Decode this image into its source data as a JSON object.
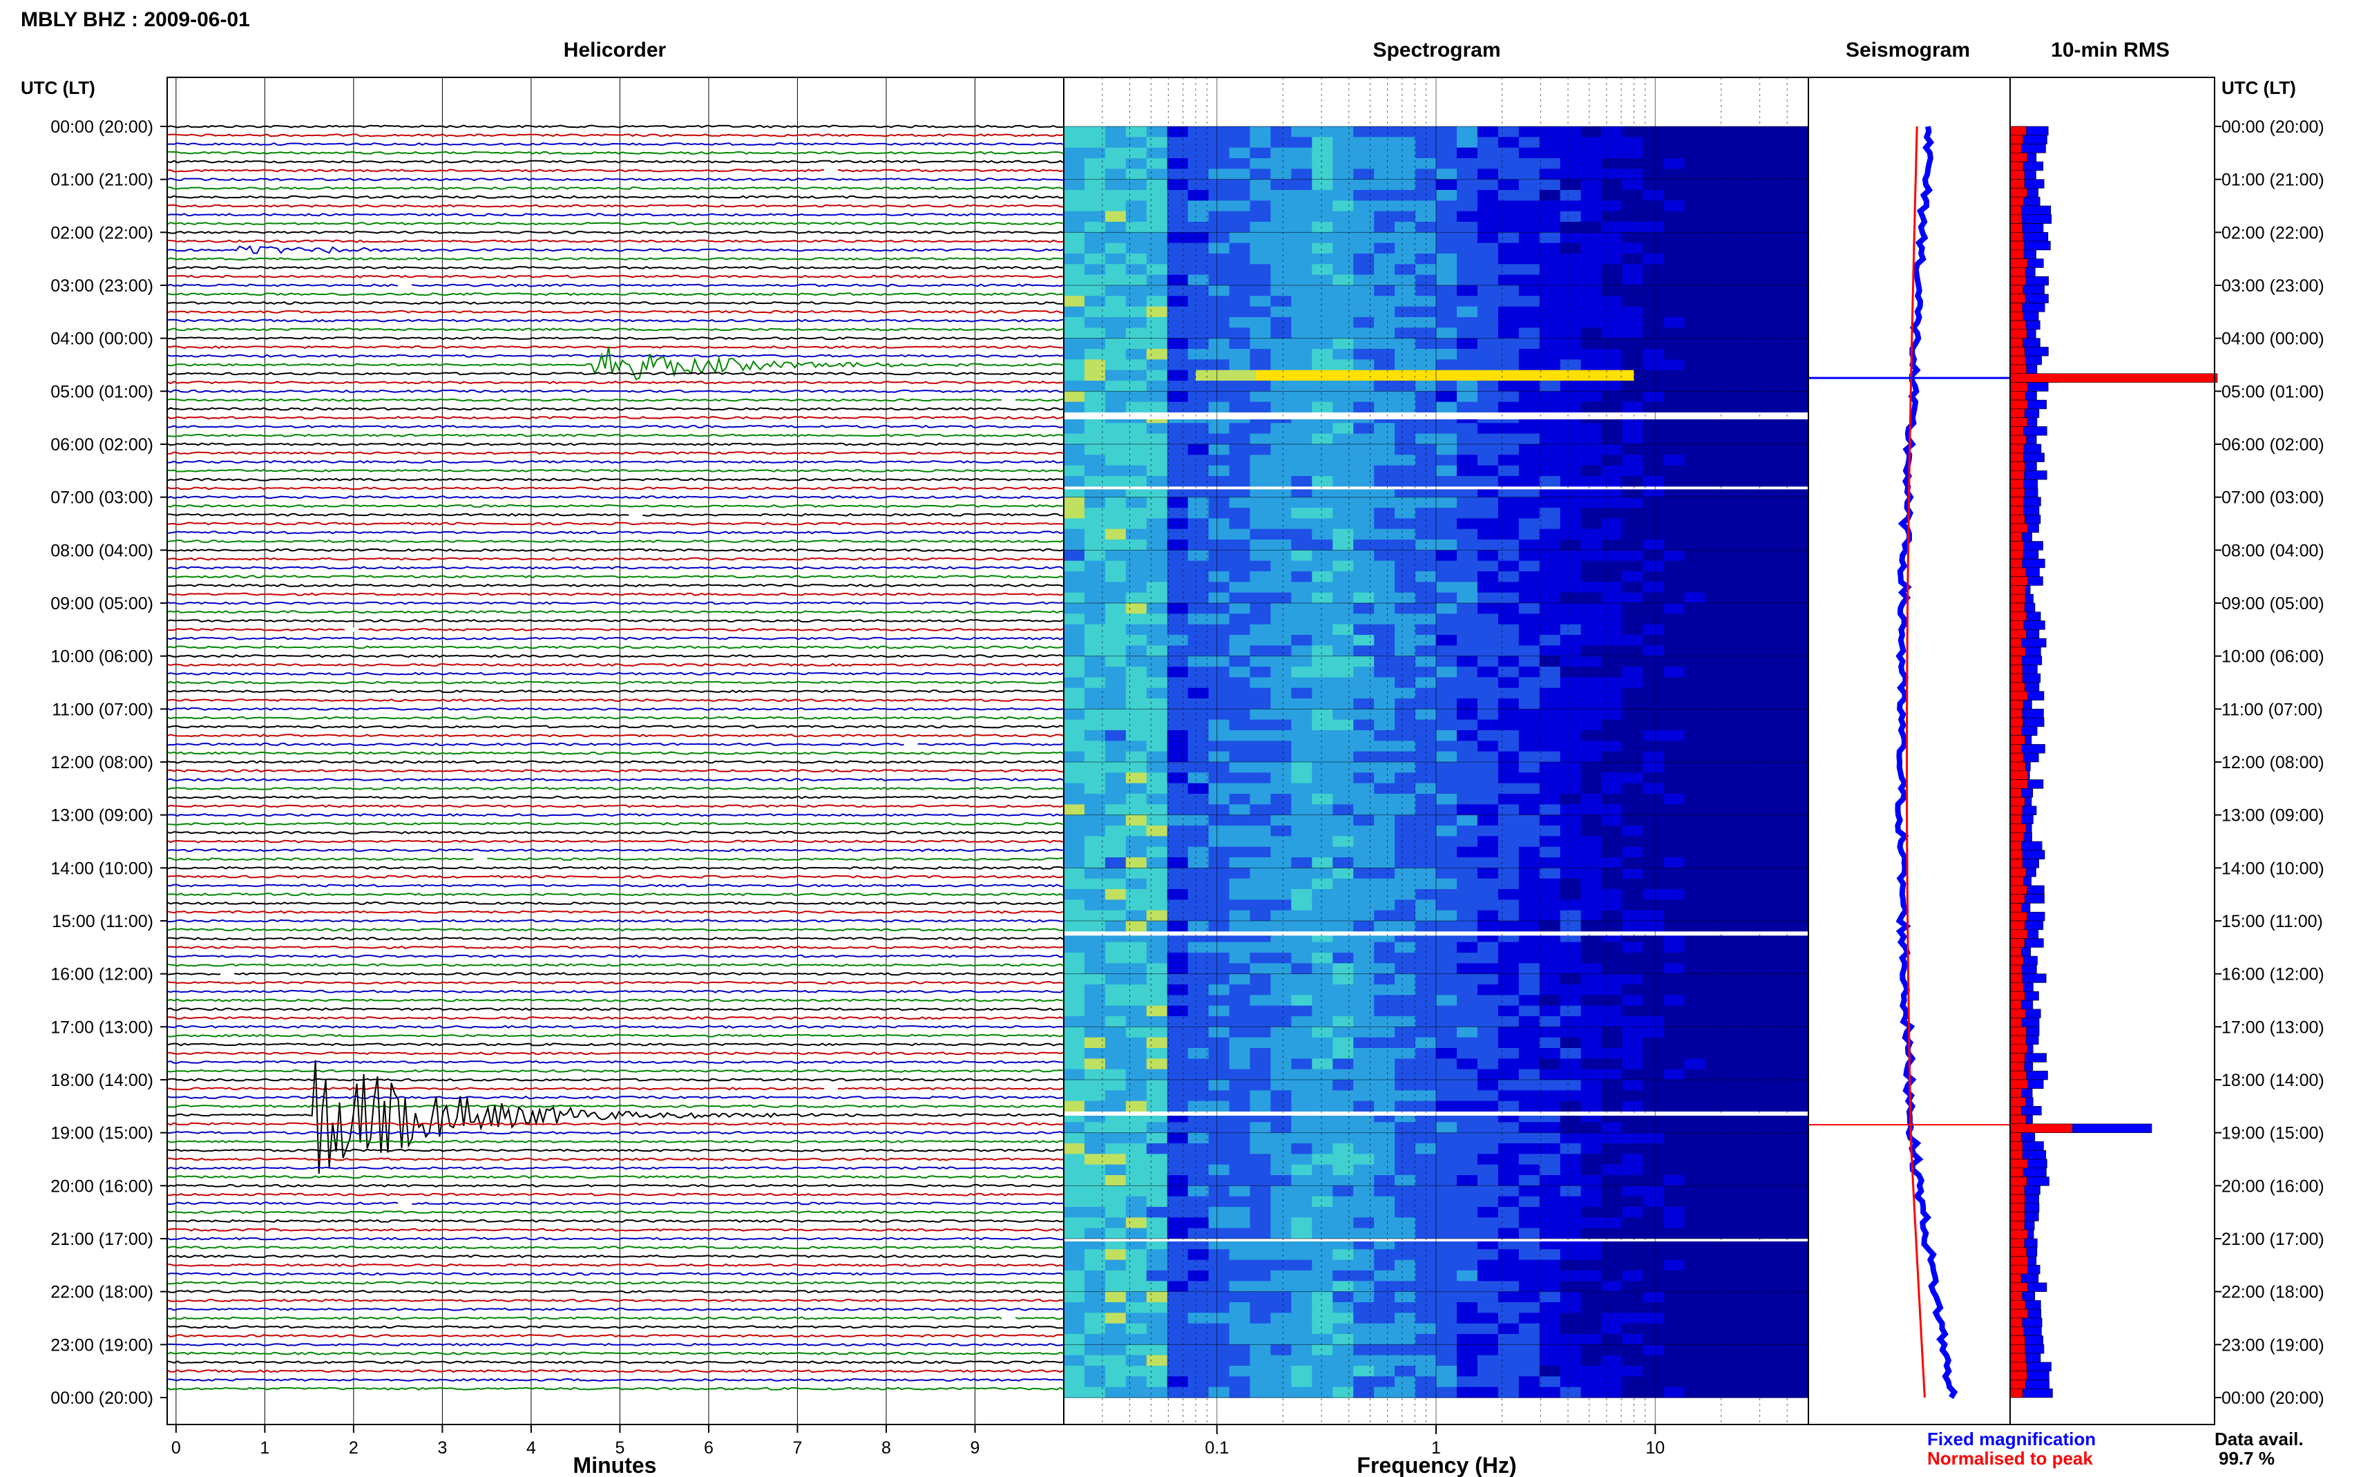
{
  "header": {
    "station_title": "MBLY BHZ : 2009-06-01",
    "utc_lt_label": "UTC (LT)",
    "data_avail_label": "Data avail.",
    "data_avail_value": "99.7 %"
  },
  "chart_data": [
    {
      "type": "line",
      "title": "Helicorder",
      "xlabel": "Minutes",
      "ylabel": "",
      "xlim": [
        -0.1,
        10.0
      ],
      "x_ticks": [
        "0",
        "1",
        "2",
        "3",
        "4",
        "5",
        "6",
        "7",
        "8",
        "9"
      ],
      "y_ticks": [
        "00:00 (20:00)",
        "01:00 (21:00)",
        "02:00 (22:00)",
        "03:00 (23:00)",
        "04:00 (00:00)",
        "05:00 (01:00)",
        "06:00 (02:00)",
        "07:00 (03:00)",
        "08:00 (04:00)",
        "09:00 (05:00)",
        "10:00 (06:00)",
        "11:00 (07:00)",
        "12:00 (08:00)",
        "13:00 (09:00)",
        "14:00 (10:00)",
        "15:00 (11:00)",
        "16:00 (12:00)",
        "17:00 (13:00)",
        "18:00 (14:00)",
        "19:00 (15:00)",
        "20:00 (16:00)",
        "21:00 (17:00)",
        "22:00 (18:00)",
        "23:00 (19:00)",
        "00:00 (20:00)"
      ],
      "trace_colors": [
        "#000000",
        "#cc0000",
        "#0000cc",
        "#008800"
      ],
      "rows_per_hour": 6,
      "events": [
        {
          "row": 14,
          "x_minute": 0.7,
          "amplitude": 0.25
        },
        {
          "row": 27,
          "x_minute": 4.7,
          "amplitude": 1.0
        },
        {
          "row": 112,
          "x_minute": 1.55,
          "amplitude": 3.5
        }
      ]
    },
    {
      "type": "heatmap",
      "title": "Spectrogram",
      "xlabel": "Frequency (Hz)",
      "ylabel": "",
      "x_scale": "log",
      "xlim": [
        0.02,
        50
      ],
      "x_ticks": [
        "0.1",
        "1",
        "10"
      ],
      "colormap": [
        "#0000a0",
        "#0000dd",
        "#1e50e6",
        "#2aa0e0",
        "#40d0d0",
        "#c0e060",
        "#ffe000"
      ]
    },
    {
      "type": "line",
      "title": "Seismogram",
      "legend": [
        {
          "name": "Fixed magnification",
          "color": "#0000ff"
        },
        {
          "name": "Normalised to peak",
          "color": "#ff0000"
        }
      ]
    },
    {
      "type": "bar",
      "title": "10-min RMS",
      "series_colors": [
        "#ff0000",
        "#0000ff"
      ]
    }
  ]
}
